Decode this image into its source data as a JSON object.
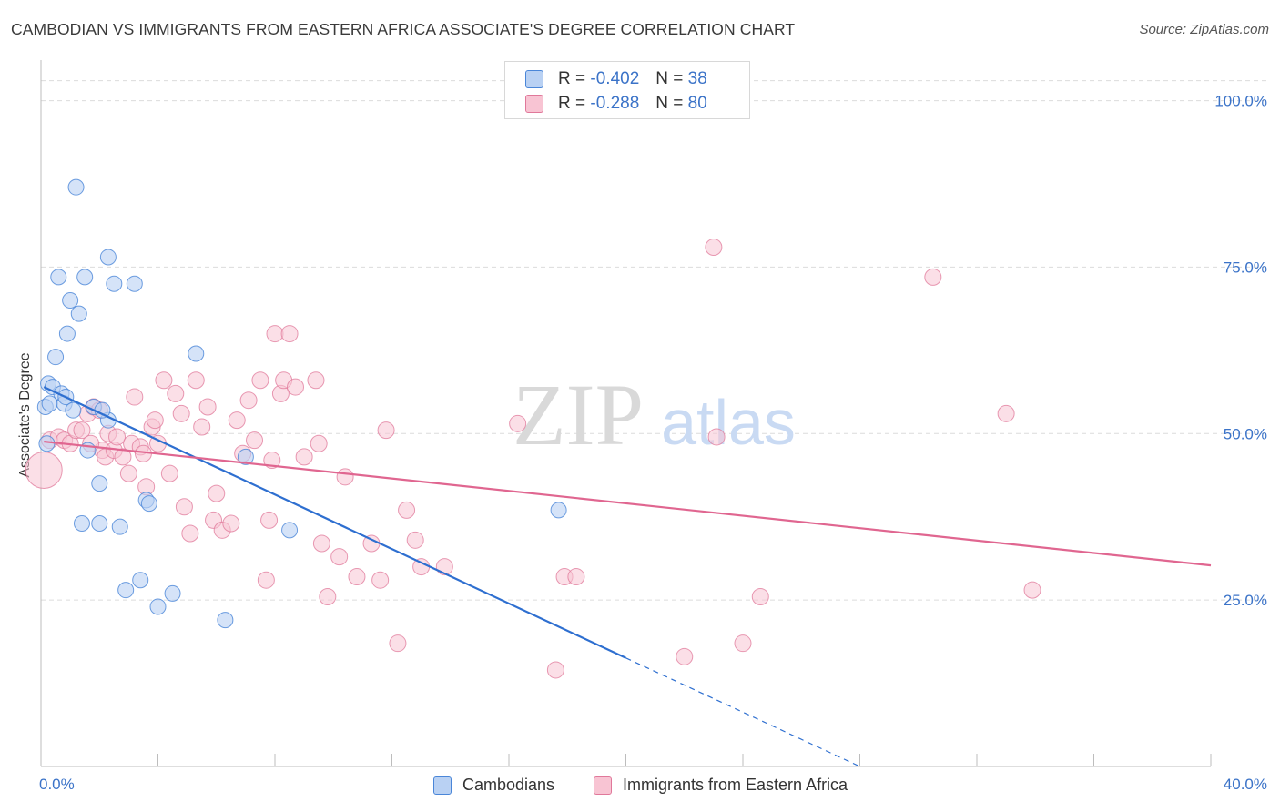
{
  "title": "CAMBODIAN VS IMMIGRANTS FROM EASTERN AFRICA ASSOCIATE'S DEGREE CORRELATION CHART",
  "source": "Source: ZipAtlas.com",
  "watermark": {
    "zip": "ZIP",
    "atlas": "atlas"
  },
  "colors": {
    "blue": "#4a86d8",
    "blue_fill": "#b9d1f3",
    "blue_line": "#2e6fd0",
    "pink": "#e0789a",
    "pink_fill": "#f8c4d3",
    "pink_line": "#e06690",
    "axis_text": "#3b73c8",
    "grid": "#dcdcdc"
  },
  "legend": {
    "rows": [
      {
        "r_label": "R =",
        "r_value": "-0.402",
        "n_label": "N =",
        "n_value": "38"
      },
      {
        "r_label": "R =",
        "r_value": "-0.288",
        "n_label": "N =",
        "n_value": "80"
      }
    ]
  },
  "bottom_legend": [
    "Cambodians",
    "Immigrants from Eastern Africa"
  ],
  "chart_data": {
    "type": "scatter",
    "title": "CAMBODIAN VS IMMIGRANTS FROM EASTERN AFRICA ASSOCIATE'S DEGREE CORRELATION CHART",
    "xlabel": "",
    "ylabel": "Associate's Degree",
    "xlim": [
      0,
      40
    ],
    "ylim": [
      0,
      105
    ],
    "x_tick_labels": [
      "0.0%",
      "40.0%"
    ],
    "y_ticks": [
      25,
      50,
      75,
      100
    ],
    "y_tick_labels": [
      "25.0%",
      "50.0%",
      "75.0%",
      "100.0%"
    ],
    "grid": true,
    "legend_position": "top-center",
    "series": [
      {
        "name": "Cambodians",
        "R": -0.402,
        "N": 38,
        "trend": {
          "x0": 0.1,
          "y0": 57.0,
          "x1": 20.0,
          "y1": 16.3,
          "dash_to_x": 28.0,
          "dash_to_y": 0.0
        },
        "points": [
          [
            0.15,
            54.0
          ],
          [
            0.2,
            48.5
          ],
          [
            0.25,
            57.5
          ],
          [
            0.3,
            54.5
          ],
          [
            0.4,
            57.0
          ],
          [
            0.5,
            61.5
          ],
          [
            0.6,
            73.5
          ],
          [
            0.7,
            56.0
          ],
          [
            0.8,
            54.5
          ],
          [
            0.85,
            55.5
          ],
          [
            0.9,
            65.0
          ],
          [
            1.0,
            70.0
          ],
          [
            1.1,
            53.5
          ],
          [
            1.2,
            87.0
          ],
          [
            1.3,
            68.0
          ],
          [
            1.4,
            36.5
          ],
          [
            1.5,
            73.5
          ],
          [
            1.6,
            47.5
          ],
          [
            1.8,
            54.0
          ],
          [
            2.0,
            42.5
          ],
          [
            2.0,
            36.5
          ],
          [
            2.3,
            76.5
          ],
          [
            2.3,
            52.0
          ],
          [
            2.5,
            72.5
          ],
          [
            2.7,
            36.0
          ],
          [
            2.9,
            26.5
          ],
          [
            3.2,
            72.5
          ],
          [
            3.4,
            28.0
          ],
          [
            3.6,
            40.0
          ],
          [
            3.7,
            39.5
          ],
          [
            4.0,
            24.0
          ],
          [
            4.5,
            26.0
          ],
          [
            5.3,
            62.0
          ],
          [
            6.3,
            22.0
          ],
          [
            7.0,
            46.5
          ],
          [
            8.5,
            35.5
          ],
          [
            17.7,
            38.5
          ],
          [
            2.1,
            53.5
          ]
        ]
      },
      {
        "name": "Immigrants from Eastern Africa",
        "R": -0.288,
        "N": 80,
        "trend": {
          "x0": 0.1,
          "y0": 48.8,
          "x1": 40.0,
          "y1": 30.2
        },
        "points": [
          [
            0.1,
            44.5
          ],
          [
            0.3,
            49.0
          ],
          [
            0.6,
            49.5
          ],
          [
            0.8,
            49.0
          ],
          [
            1.0,
            48.5
          ],
          [
            1.2,
            50.5
          ],
          [
            1.4,
            50.5
          ],
          [
            1.6,
            53.0
          ],
          [
            1.8,
            54.0
          ],
          [
            2.0,
            53.5
          ],
          [
            2.1,
            47.5
          ],
          [
            2.2,
            46.5
          ],
          [
            2.3,
            50.0
          ],
          [
            2.5,
            47.5
          ],
          [
            2.6,
            49.5
          ],
          [
            2.8,
            46.5
          ],
          [
            3.0,
            44.0
          ],
          [
            3.1,
            48.5
          ],
          [
            3.2,
            55.5
          ],
          [
            3.4,
            48.0
          ],
          [
            3.5,
            47.0
          ],
          [
            3.6,
            42.0
          ],
          [
            3.8,
            51.0
          ],
          [
            3.9,
            52.0
          ],
          [
            4.0,
            48.5
          ],
          [
            4.2,
            58.0
          ],
          [
            4.4,
            44.0
          ],
          [
            4.6,
            56.0
          ],
          [
            4.8,
            53.0
          ],
          [
            4.9,
            39.0
          ],
          [
            5.1,
            35.0
          ],
          [
            5.3,
            58.0
          ],
          [
            5.5,
            51.0
          ],
          [
            5.7,
            54.0
          ],
          [
            5.9,
            37.0
          ],
          [
            6.0,
            41.0
          ],
          [
            6.2,
            35.5
          ],
          [
            6.5,
            36.5
          ],
          [
            6.7,
            52.0
          ],
          [
            6.9,
            47.0
          ],
          [
            7.1,
            55.0
          ],
          [
            7.3,
            49.0
          ],
          [
            7.5,
            58.0
          ],
          [
            7.7,
            28.0
          ],
          [
            7.8,
            37.0
          ],
          [
            7.9,
            46.0
          ],
          [
            8.0,
            65.0
          ],
          [
            8.2,
            56.0
          ],
          [
            8.3,
            58.0
          ],
          [
            8.5,
            65.0
          ],
          [
            8.7,
            57.0
          ],
          [
            9.0,
            46.5
          ],
          [
            9.4,
            58.0
          ],
          [
            9.5,
            48.5
          ],
          [
            9.6,
            33.5
          ],
          [
            9.8,
            25.5
          ],
          [
            10.2,
            31.5
          ],
          [
            10.4,
            43.5
          ],
          [
            10.8,
            28.5
          ],
          [
            11.3,
            33.5
          ],
          [
            11.6,
            28.0
          ],
          [
            11.8,
            50.5
          ],
          [
            12.2,
            18.5
          ],
          [
            12.5,
            38.5
          ],
          [
            12.8,
            34.0
          ],
          [
            13.0,
            30.0
          ],
          [
            13.8,
            30.0
          ],
          [
            16.3,
            51.5
          ],
          [
            17.6,
            14.5
          ],
          [
            17.9,
            28.5
          ],
          [
            18.3,
            28.5
          ],
          [
            22.0,
            16.5
          ],
          [
            23.0,
            78.0
          ],
          [
            23.1,
            49.5
          ],
          [
            24.0,
            18.5
          ],
          [
            24.6,
            25.5
          ],
          [
            30.5,
            73.5
          ],
          [
            33.0,
            53.0
          ],
          [
            33.9,
            26.5
          ],
          [
            1.7,
            48.5
          ]
        ]
      }
    ]
  }
}
